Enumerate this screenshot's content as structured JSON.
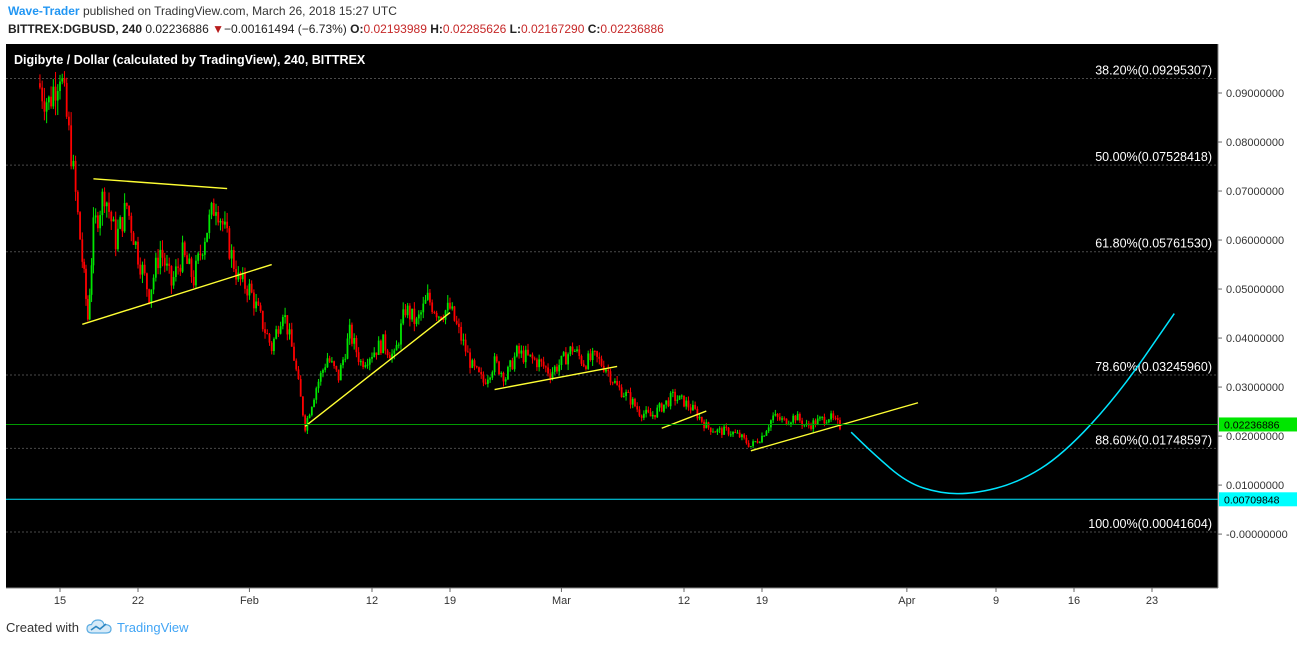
{
  "header": {
    "author": "Wave-Trader",
    "published_text": "published on TradingView.com, March 26, 2018 15:27 UTC",
    "symbol": "BITTREX:DGBUSD, 240",
    "last_price": "0.02236886",
    "change_arrow": "▼",
    "change": "−0.00161494 (−6.73%)",
    "open_label": "O:",
    "open": "0.02193989",
    "high_label": "H:",
    "high": "0.02285626",
    "low_label": "L:",
    "low": "0.02167290",
    "close_label": "C:",
    "close": "0.02236886"
  },
  "chart_data": {
    "type": "candlestick",
    "title": "Digibyte / Dollar (calculated by TradingView), 240, BITTREX",
    "ylim": [
      -0.011,
      0.1
    ],
    "y_ticks": [
      {
        "value": 0.09,
        "label": "0.09000000"
      },
      {
        "value": 0.08,
        "label": "0.08000000"
      },
      {
        "value": 0.07,
        "label": "0.07000000"
      },
      {
        "value": 0.06,
        "label": "0.06000000"
      },
      {
        "value": 0.05,
        "label": "0.05000000"
      },
      {
        "value": 0.04,
        "label": "0.04000000"
      },
      {
        "value": 0.03,
        "label": "0.03000000"
      },
      {
        "value": 0.02,
        "label": "0.02000000"
      },
      {
        "value": 0.01,
        "label": "0.01000000"
      },
      {
        "value": 0.0,
        "label": "-0.00000000"
      }
    ],
    "x_ticks": [
      {
        "date": "2018-01-15",
        "label": "15"
      },
      {
        "date": "2018-01-22",
        "label": "22"
      },
      {
        "date": "2018-02-01",
        "label": "Feb"
      },
      {
        "date": "2018-02-12",
        "label": "12"
      },
      {
        "date": "2018-02-19",
        "label": "19"
      },
      {
        "date": "2018-03-01",
        "label": "Mar"
      },
      {
        "date": "2018-03-12",
        "label": "12"
      },
      {
        "date": "2018-03-19",
        "label": "19"
      },
      {
        "date": "2018-04-01",
        "label": "Apr"
      },
      {
        "date": "2018-04-09",
        "label": "9"
      },
      {
        "date": "2018-04-16",
        "label": "16"
      },
      {
        "date": "2018-04-23",
        "label": "23"
      }
    ],
    "fib_levels": [
      {
        "value": 0.09295307,
        "label": "38.20%(0.09295307)"
      },
      {
        "value": 0.07528418,
        "label": "50.00%(0.07528418)"
      },
      {
        "value": 0.0576153,
        "label": "61.80%(0.05761530)"
      },
      {
        "value": 0.0324596,
        "label": "78.60%(0.03245960)"
      },
      {
        "value": 0.01748597,
        "label": "88.60%(0.01748597)"
      },
      {
        "value": 0.00041604,
        "label": "100.00%(0.00041604)"
      }
    ],
    "price_marker": {
      "value": 0.02236886,
      "label": "0.02236886",
      "color": "#00e600"
    },
    "target_marker": {
      "value": 0.00709848,
      "label": "0.00709848",
      "color": "#00ffff"
    },
    "close_path": [
      {
        "date": "2018-01-13",
        "y": 0.092
      },
      {
        "date": "2018-01-14",
        "y": 0.088
      },
      {
        "date": "2018-01-15",
        "y": 0.095
      },
      {
        "date": "2018-01-16",
        "y": 0.078
      },
      {
        "date": "2018-01-17",
        "y": 0.056
      },
      {
        "date": "2018-01-17T12:00",
        "y": 0.044
      },
      {
        "date": "2018-01-18",
        "y": 0.062
      },
      {
        "date": "2018-01-19",
        "y": 0.07
      },
      {
        "date": "2018-01-20",
        "y": 0.06
      },
      {
        "date": "2018-01-21",
        "y": 0.067
      },
      {
        "date": "2018-01-22",
        "y": 0.057
      },
      {
        "date": "2018-01-23",
        "y": 0.049
      },
      {
        "date": "2018-01-24",
        "y": 0.058
      },
      {
        "date": "2018-01-25",
        "y": 0.051
      },
      {
        "date": "2018-01-26",
        "y": 0.057
      },
      {
        "date": "2018-01-27",
        "y": 0.052
      },
      {
        "date": "2018-01-28",
        "y": 0.061
      },
      {
        "date": "2018-01-29",
        "y": 0.068
      },
      {
        "date": "2018-01-30",
        "y": 0.06
      },
      {
        "date": "2018-01-31",
        "y": 0.052
      },
      {
        "date": "2018-02-01",
        "y": 0.05
      },
      {
        "date": "2018-02-02",
        "y": 0.044
      },
      {
        "date": "2018-02-03",
        "y": 0.038
      },
      {
        "date": "2018-02-04",
        "y": 0.046
      },
      {
        "date": "2018-02-05",
        "y": 0.036
      },
      {
        "date": "2018-02-06",
        "y": 0.022
      },
      {
        "date": "2018-02-07",
        "y": 0.03
      },
      {
        "date": "2018-02-08",
        "y": 0.036
      },
      {
        "date": "2018-02-09",
        "y": 0.032
      },
      {
        "date": "2018-02-10",
        "y": 0.041
      },
      {
        "date": "2018-02-11",
        "y": 0.035
      },
      {
        "date": "2018-02-12",
        "y": 0.037
      },
      {
        "date": "2018-02-13",
        "y": 0.039
      },
      {
        "date": "2018-02-14",
        "y": 0.036
      },
      {
        "date": "2018-02-15",
        "y": 0.046
      },
      {
        "date": "2018-02-16",
        "y": 0.043
      },
      {
        "date": "2018-02-17",
        "y": 0.048
      },
      {
        "date": "2018-02-18",
        "y": 0.045
      },
      {
        "date": "2018-02-19",
        "y": 0.046
      },
      {
        "date": "2018-02-20",
        "y": 0.04
      },
      {
        "date": "2018-02-21",
        "y": 0.034
      },
      {
        "date": "2018-02-22",
        "y": 0.031
      },
      {
        "date": "2018-02-23",
        "y": 0.035
      },
      {
        "date": "2018-02-24",
        "y": 0.032
      },
      {
        "date": "2018-02-25",
        "y": 0.037
      },
      {
        "date": "2018-02-26",
        "y": 0.036
      },
      {
        "date": "2018-02-27",
        "y": 0.035
      },
      {
        "date": "2018-02-28",
        "y": 0.033
      },
      {
        "date": "2018-03-01",
        "y": 0.035
      },
      {
        "date": "2018-03-02",
        "y": 0.038
      },
      {
        "date": "2018-03-03",
        "y": 0.035
      },
      {
        "date": "2018-03-04",
        "y": 0.036
      },
      {
        "date": "2018-03-05",
        "y": 0.034
      },
      {
        "date": "2018-03-06",
        "y": 0.03
      },
      {
        "date": "2018-03-07",
        "y": 0.028
      },
      {
        "date": "2018-03-08",
        "y": 0.025
      },
      {
        "date": "2018-03-09",
        "y": 0.024
      },
      {
        "date": "2018-03-10",
        "y": 0.026
      },
      {
        "date": "2018-03-11",
        "y": 0.028
      },
      {
        "date": "2018-03-12",
        "y": 0.027
      },
      {
        "date": "2018-03-13",
        "y": 0.025
      },
      {
        "date": "2018-03-14",
        "y": 0.022
      },
      {
        "date": "2018-03-15",
        "y": 0.021
      },
      {
        "date": "2018-03-16",
        "y": 0.021
      },
      {
        "date": "2018-03-17",
        "y": 0.02
      },
      {
        "date": "2018-03-18",
        "y": 0.018
      },
      {
        "date": "2018-03-19",
        "y": 0.02
      },
      {
        "date": "2018-03-20",
        "y": 0.024
      },
      {
        "date": "2018-03-21",
        "y": 0.023
      },
      {
        "date": "2018-03-22",
        "y": 0.024
      },
      {
        "date": "2018-03-23",
        "y": 0.022
      },
      {
        "date": "2018-03-24",
        "y": 0.023
      },
      {
        "date": "2018-03-25",
        "y": 0.024
      },
      {
        "date": "2018-03-26",
        "y": 0.022
      }
    ],
    "trendlines": [
      {
        "from": {
          "date": "2018-01-18",
          "y": 0.0725
        },
        "to": {
          "date": "2018-01-30",
          "y": 0.0705
        }
      },
      {
        "from": {
          "date": "2018-01-17",
          "y": 0.0428
        },
        "to": {
          "date": "2018-02-03",
          "y": 0.055
        }
      },
      {
        "from": {
          "date": "2018-02-06",
          "y": 0.022
        },
        "to": {
          "date": "2018-02-19",
          "y": 0.0452
        }
      },
      {
        "from": {
          "date": "2018-02-23",
          "y": 0.0295
        },
        "to": {
          "date": "2018-03-06",
          "y": 0.0342
        }
      },
      {
        "from": {
          "date": "2018-03-10",
          "y": 0.0216
        },
        "to": {
          "date": "2018-03-14",
          "y": 0.0251
        }
      },
      {
        "from": {
          "date": "2018-03-18",
          "y": 0.017
        },
        "to": {
          "date": "2018-04-02",
          "y": 0.0268
        }
      }
    ],
    "projection": [
      {
        "date": "2018-03-27",
        "y": 0.0208
      },
      {
        "date": "2018-03-29",
        "y": 0.0164
      },
      {
        "date": "2018-04-01",
        "y": 0.0105
      },
      {
        "date": "2018-04-04",
        "y": 0.0083
      },
      {
        "date": "2018-04-07",
        "y": 0.0082
      },
      {
        "date": "2018-04-11",
        "y": 0.0105
      },
      {
        "date": "2018-04-15",
        "y": 0.0162
      },
      {
        "date": "2018-04-20",
        "y": 0.0285
      },
      {
        "date": "2018-04-25",
        "y": 0.045
      }
    ],
    "colors": {
      "background": "#000000",
      "up": "#00e600",
      "down": "#ff0000",
      "trendline": "#ffff33",
      "projection": "#00e5ff",
      "fib_line": "#4a4a4a",
      "price_line": "#009a00",
      "target_line": "#00e5ff"
    },
    "grid": false
  },
  "footer": {
    "created_with": "Created with",
    "brand": "TradingView"
  }
}
